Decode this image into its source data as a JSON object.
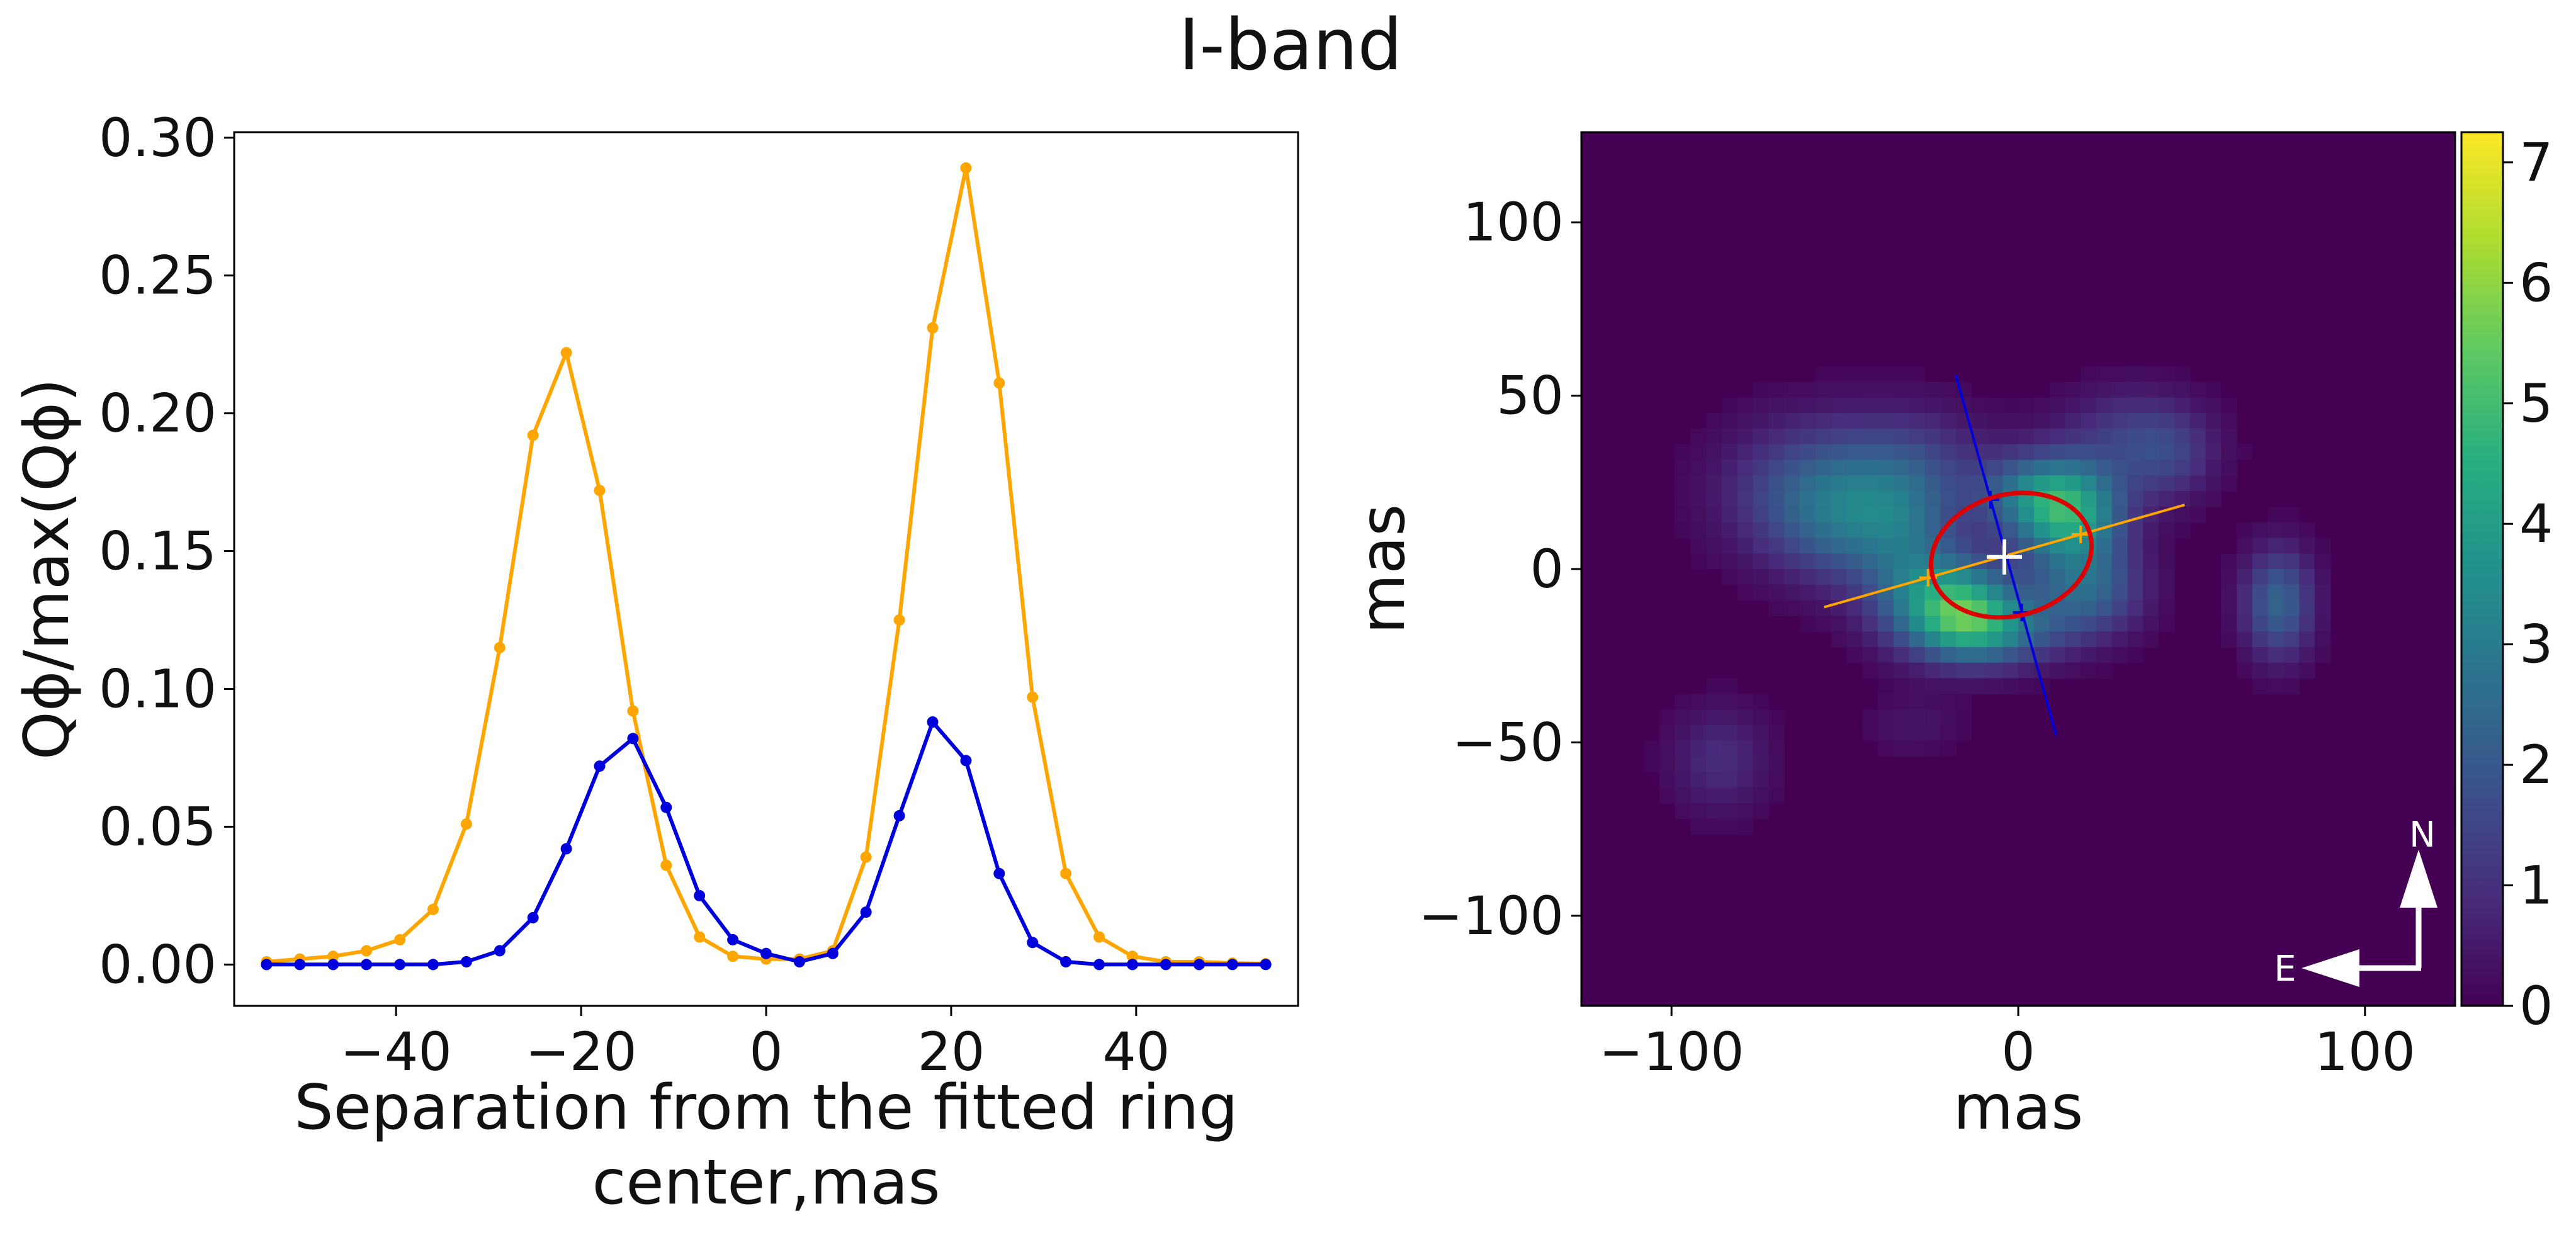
{
  "figure": {
    "title": "I-band"
  },
  "chart_data": [
    {
      "type": "line",
      "title": "",
      "xlabel_lines": [
        "Separation from the fitted ring",
        "center,mas"
      ],
      "ylabel": "Qϕ/max(Qϕ)",
      "xlim": [
        -57.5,
        57.5
      ],
      "ylim": [
        -0.015,
        0.302
      ],
      "xticks": [
        -40,
        -20,
        0,
        20,
        40
      ],
      "xtick_labels": [
        "−40",
        "−20",
        "0",
        "20",
        "40"
      ],
      "yticks": [
        0.0,
        0.05,
        0.1,
        0.15,
        0.2,
        0.25,
        0.3
      ],
      "ytick_labels": [
        "0.00",
        "0.05",
        "0.10",
        "0.15",
        "0.20",
        "0.25",
        "0.30"
      ],
      "x": [
        -54,
        -50.4,
        -46.8,
        -43.2,
        -39.6,
        -36,
        -32.4,
        -28.8,
        -25.2,
        -21.6,
        -18,
        -14.4,
        -10.8,
        -7.2,
        -3.6,
        0,
        3.6,
        7.2,
        10.8,
        14.4,
        18,
        21.6,
        25.2,
        28.8,
        32.4,
        36,
        39.6,
        43.2,
        46.8,
        50.4,
        54
      ],
      "series": [
        {
          "name": "orange profile",
          "color": "#ffa500",
          "values": [
            0.001,
            0.002,
            0.003,
            0.005,
            0.009,
            0.02,
            0.051,
            0.115,
            0.192,
            0.222,
            0.172,
            0.092,
            0.036,
            0.01,
            0.003,
            0.002,
            0.002,
            0.005,
            0.039,
            0.125,
            0.231,
            0.289,
            0.211,
            0.097,
            0.033,
            0.01,
            0.003,
            0.001,
            0.001,
            0.0005,
            0.0003
          ]
        },
        {
          "name": "blue profile",
          "color": "#0000dd",
          "values": [
            0.0,
            0.0,
            0.0,
            0.0,
            0.0,
            0.0,
            0.001,
            0.005,
            0.017,
            0.042,
            0.072,
            0.082,
            0.057,
            0.025,
            0.009,
            0.004,
            0.001,
            0.004,
            0.019,
            0.054,
            0.088,
            0.074,
            0.033,
            0.008,
            0.001,
            0.0,
            0.0,
            0.0,
            0.0,
            0.0,
            0.0
          ]
        }
      ]
    },
    {
      "type": "heatmap",
      "title": "",
      "xlabel": "mas",
      "ylabel": "mas",
      "xlim": [
        -126,
        126
      ],
      "ylim": [
        -126,
        126
      ],
      "xticks": [
        -100,
        0,
        100
      ],
      "xtick_labels": [
        "−100",
        "0",
        "100"
      ],
      "yticks": [
        100,
        50,
        0,
        -50,
        -100
      ],
      "ytick_labels": [
        "100",
        "50",
        "0",
        "−50",
        "−100"
      ],
      "colormap": "viridis",
      "colorbar": {
        "range": [
          0,
          7.25
        ],
        "ticks": [
          0,
          1,
          2,
          3,
          4,
          5,
          6,
          7
        ],
        "tick_labels": [
          "0",
          "1",
          "2",
          "3",
          "4",
          "5",
          "6",
          "7"
        ]
      },
      "intensity_sources": [
        {
          "x": 15,
          "y": 15,
          "sx": 11,
          "sy": 10,
          "amp": 3.6
        },
        {
          "x": 5,
          "y": 22,
          "sx": 12,
          "sy": 8,
          "amp": 2.2
        },
        {
          "x": -22,
          "y": -9,
          "sx": 13,
          "sy": 10,
          "amp": 3.4
        },
        {
          "x": -14,
          "y": -14,
          "sx": 10,
          "sy": 8,
          "amp": 1.8
        },
        {
          "x": 20,
          "y": -6,
          "sx": 11,
          "sy": 9,
          "amp": 2.2
        },
        {
          "x": -5,
          "y": -18,
          "sx": 14,
          "sy": 7,
          "amp": 2.0
        },
        {
          "x": -58,
          "y": 22,
          "sx": 18,
          "sy": 14,
          "amp": 1.9
        },
        {
          "x": -48,
          "y": 12,
          "sx": 14,
          "sy": 12,
          "amp": 1.3
        },
        {
          "x": -30,
          "y": 30,
          "sx": 16,
          "sy": 12,
          "amp": 1.1
        },
        {
          "x": 32,
          "y": 38,
          "sx": 14,
          "sy": 10,
          "amp": 1.2
        },
        {
          "x": 44,
          "y": 32,
          "sx": 9,
          "sy": 9,
          "amp": 0.9
        },
        {
          "x": -32,
          "y": 12,
          "sx": 10,
          "sy": 12,
          "amp": 1.2
        },
        {
          "x": 75,
          "y": -10,
          "sx": 7,
          "sy": 11,
          "amp": 2.3
        },
        {
          "x": -86,
          "y": -55,
          "sx": 10,
          "sy": 11,
          "amp": 0.9
        },
        {
          "x": -30,
          "y": -45,
          "sx": 10,
          "sy": 6,
          "amp": 0.4
        }
      ],
      "ring": {
        "cx": -2,
        "cy": 4,
        "semi_major": 23.5,
        "semi_minor": 17.5,
        "angle_deg": 15,
        "color": "#dd0000"
      },
      "ring_center_marker": {
        "x": -4,
        "y": 3.5,
        "color": "#ffffff"
      },
      "axis_lines": [
        {
          "name": "orange",
          "color": "#ffa500",
          "from": [
            -56,
            -11
          ],
          "to": [
            48,
            18.5
          ],
          "markers": [
            [
              -26,
              -2.5
            ],
            [
              18,
              10
            ]
          ]
        },
        {
          "name": "blue",
          "color": "#0000dd",
          "from": [
            -18,
            56
          ],
          "to": [
            11,
            -48
          ],
          "markers": [
            [
              -8,
              20
            ],
            [
              1,
              -12.5
            ]
          ]
        }
      ],
      "compass": {
        "north_label": "N",
        "east_label": "E",
        "color": "#ffffff"
      }
    }
  ]
}
